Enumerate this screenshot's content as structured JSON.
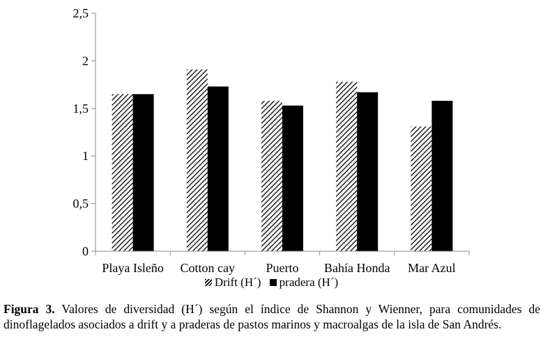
{
  "chart_data": {
    "type": "bar",
    "categories": [
      "Playa Isleño",
      "Cotton cay",
      "Puerto",
      "Bahía Honda",
      "Mar Azul"
    ],
    "series": [
      {
        "name": "Drift (H´)",
        "values": [
          1.65,
          1.91,
          1.58,
          1.78,
          1.31
        ],
        "fill": "hatched"
      },
      {
        "name": "pradera (H´)",
        "values": [
          1.65,
          1.73,
          1.53,
          1.67,
          1.58
        ],
        "fill": "solid"
      }
    ],
    "y_ticks": [
      "0",
      "0,5",
      "1",
      "1,5",
      "2",
      "2,5"
    ],
    "ylim": [
      0,
      2.5
    ],
    "grid": false,
    "legend_position": "bottom",
    "colors": {
      "bars": "#000000",
      "background": "#ffffff"
    }
  },
  "caption": {
    "label": "Figura 3.",
    "text": " Valores de diversidad (H´) según el índice de Shannon y Wienner, para comunidades de dinoflagelados asociados a drift y a praderas de pastos marinos y macroalgas de la isla de San Andrés."
  }
}
